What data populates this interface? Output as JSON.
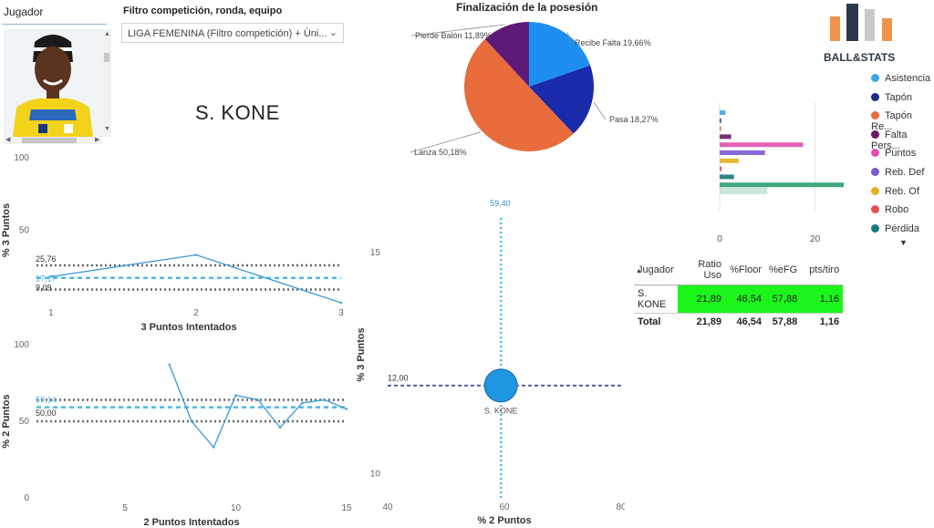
{
  "player_slicer": {
    "title": "Jugador",
    "photo_alt": "Foto de jugadora"
  },
  "filter": {
    "title": "Filtro competición, ronda, equipo",
    "value": "LIGA FEMENINA (Filtro competición) + Úni..."
  },
  "player_name": "S. KONE",
  "pie": {
    "title": "Finalización de la posesión",
    "slices": [
      {
        "label": "Recibe Falta 19,66%",
        "value": 19.66,
        "color": "#1e8ff0"
      },
      {
        "label": "Pasa 18,27%",
        "value": 18.27,
        "color": "#1a2aa8"
      },
      {
        "label": "Lanza 50,18%",
        "value": 50.18,
        "color": "#e86c3c"
      },
      {
        "label": "Pierde Balón 11,89%",
        "value": 11.89,
        "color": "#5e1a78"
      }
    ]
  },
  "logo": {
    "text": "BALL&STATS",
    "bar_colors": [
      "#f0944a",
      "#2b3a4a",
      "#c9c9c9",
      "#f0944a"
    ]
  },
  "legend": {
    "items": [
      {
        "label": "Asistencia",
        "color": "#3aa7e6"
      },
      {
        "label": "Tapón",
        "color": "#1a2a8a"
      },
      {
        "label": "Tapón Re...",
        "color": "#e86c3c"
      },
      {
        "label": "Falta Pers...",
        "color": "#6a1a6a"
      },
      {
        "label": "Puntos",
        "color": "#e24fb0"
      },
      {
        "label": "Reb. Def",
        "color": "#7a5ad0"
      },
      {
        "label": "Reb. Of",
        "color": "#e0b420"
      },
      {
        "label": "Robo",
        "color": "#e05050"
      },
      {
        "label": "Pérdida",
        "color": "#1a7a7a"
      }
    ],
    "more_arrow": "▼"
  },
  "hbar": {
    "x_ticks": [
      "0",
      "20"
    ],
    "bars": [
      {
        "series": "Asistencia",
        "value": 1.2,
        "color": "#3aa7e6"
      },
      {
        "series": "Tapón",
        "value": 0.3,
        "color": "#1a2a8a"
      },
      {
        "series": "Tapón Re...",
        "value": 0.3,
        "color": "#e86c3c"
      },
      {
        "series": "Falta Pers...",
        "value": 2.4,
        "color": "#6a1a6a"
      },
      {
        "series": "Puntos",
        "value": 17.5,
        "color": "#e24fb0"
      },
      {
        "series": "Reb. Def",
        "value": 9.5,
        "color": "#7a5ad0"
      },
      {
        "series": "Reb. Of",
        "value": 4.0,
        "color": "#e0b420"
      },
      {
        "series": "Robo",
        "value": 0.4,
        "color": "#e05050"
      },
      {
        "series": "Pérdida",
        "value": 3.0,
        "color": "#1a7a7a"
      },
      {
        "series": "Total",
        "value": 26.0,
        "color": "#2aa070"
      }
    ]
  },
  "table": {
    "headers": [
      "Jugador",
      "Ratio Uso",
      "%Floor",
      "%eFG",
      "pts/tiro"
    ],
    "rows": [
      [
        "S. KONE",
        "21,89",
        "46,54",
        "57,88",
        "1,16"
      ]
    ],
    "total": [
      "Total",
      "21,89",
      "46,54",
      "57,88",
      "1,16"
    ]
  },
  "chart_3p": {
    "y_label": "% 3 Puntos",
    "x_label": "3 Puntos Intentados",
    "y_ticks": [
      "100",
      "50"
    ],
    "x_ticks": [
      "1",
      "2",
      "3"
    ],
    "ref_labels": [
      "25,76",
      "17,17",
      "9,09"
    ],
    "ref_lines": {
      "upper": 25.76,
      "mid": 17.17,
      "lower": 9.09
    },
    "x": [
      1,
      2,
      3
    ],
    "y": [
      18,
      33,
      0
    ],
    "xlim": [
      0.9,
      3
    ],
    "ylim": [
      0,
      100
    ]
  },
  "chart_2p": {
    "y_label": "% 2 Puntos",
    "x_label": "2 Puntos Intentados",
    "y_ticks": [
      "100",
      "50",
      "0"
    ],
    "x_ticks": [
      "5",
      "10",
      "15"
    ],
    "ref_labels": [
      "59,14",
      "50,00"
    ],
    "ref_lines": {
      "upper": 64,
      "mid": 59.14,
      "lower": 50
    },
    "x": [
      7,
      8,
      9,
      10,
      11,
      12,
      13,
      14,
      15
    ],
    "y": [
      87,
      50,
      33,
      67,
      64,
      46,
      62,
      64,
      58
    ],
    "xlim": [
      1,
      15
    ],
    "ylim": [
      0,
      100
    ]
  },
  "scatter": {
    "y_label": "% 3 Puntos",
    "x_label": "% 2 Puntos",
    "y_ticks": [
      "15",
      "10"
    ],
    "x_ticks": [
      "40",
      "60",
      "80"
    ],
    "v_ref_label": "59,40",
    "h_ref_label": "12,00",
    "point_label": "S. KONE",
    "point": {
      "x": 59.4,
      "y": 12.0
    },
    "v_ref": 59.4,
    "h_ref": 12.0,
    "xlim": [
      40,
      80
    ],
    "ylim": [
      9.5,
      16.2
    ]
  }
}
